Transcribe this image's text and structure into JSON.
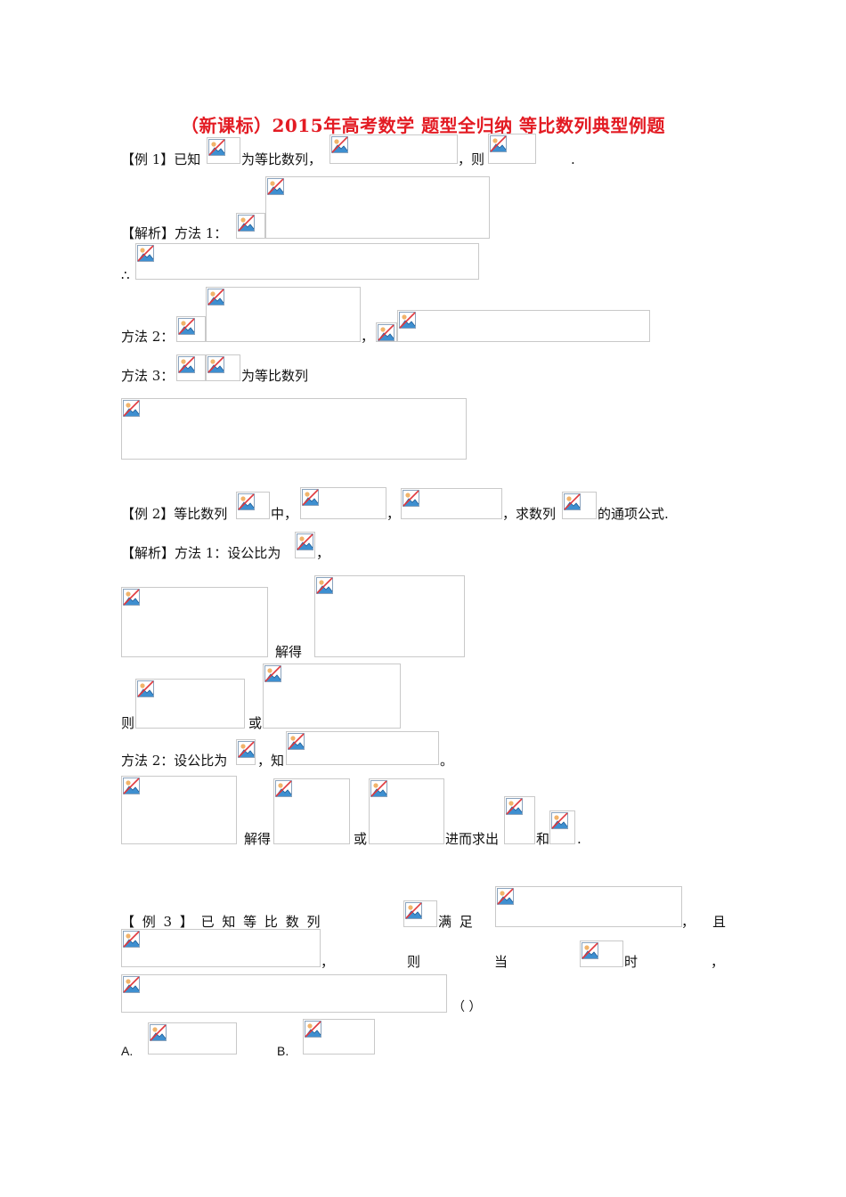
{
  "title": "（新课标）2015年高考数学 题型全归纳 等比数列典型例题",
  "ex1": {
    "label": "【例 1】已知",
    "t1": "为等比数列，",
    "t2": "，则",
    "t3": "."
  },
  "sol1": {
    "label": "【解析】方法 1：",
    "therefore": "∴",
    "m2": "方法 2：",
    "comma": "，",
    "m3": "方法 3：",
    "m3_tail": "为等比数列"
  },
  "ex2": {
    "label": "【例 2】等比数列",
    "t1": "中，",
    "t2": "，",
    "t3": "，求数列",
    "t4": "的通项公式."
  },
  "sol2": {
    "label": "【解析】方法 1：设公比为",
    "comma": "，",
    "jiede": "解得",
    "ze": "则",
    "huo": "或",
    "m2": "方法 2：设公比为",
    "zhi": "，知",
    "period": "。",
    "jiede2": "解得",
    "huo2": "或",
    "jinerqiuchu": "进而求出",
    "he": "和",
    "end": "."
  },
  "ex3": {
    "label": "【 例 3 】 已 知 等 比 数 列",
    "manzu": "满 足",
    "comma": "，",
    "qie": "且",
    "ze": "则",
    "dang": "当",
    "shi": "时",
    "comma2": "，",
    "paren": "（   ）",
    "optA": "A.",
    "optB": "B."
  }
}
